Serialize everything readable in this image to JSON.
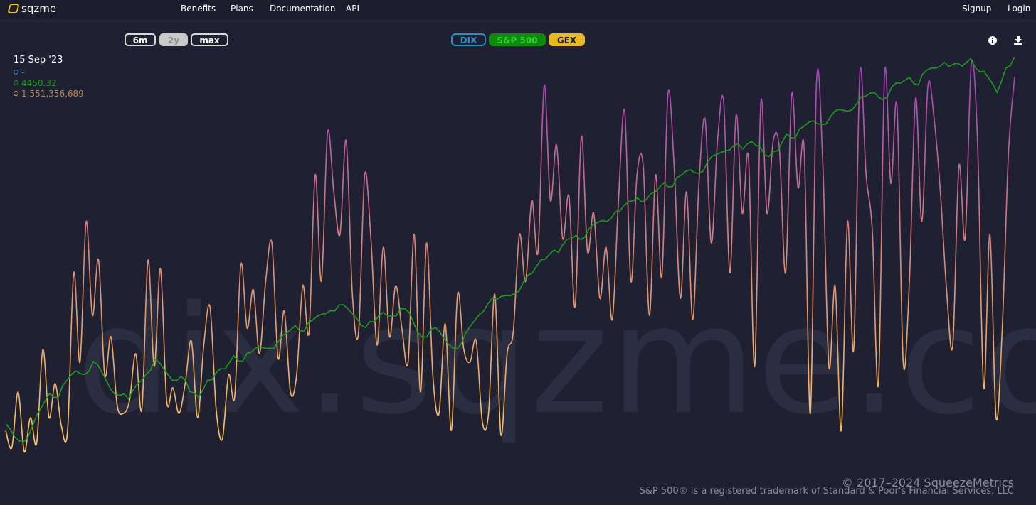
{
  "nav": {
    "brand": "sqzme",
    "links": [
      "Benefits",
      "Plans",
      "Documentation",
      "API"
    ],
    "signup": "Signup",
    "login": "Login"
  },
  "range_buttons": [
    {
      "label": "6m",
      "active": false
    },
    {
      "label": "2y",
      "active": true
    },
    {
      "label": "max",
      "active": false
    }
  ],
  "series_buttons": [
    {
      "label": "DIX",
      "color": "#2b8fbd",
      "active": false
    },
    {
      "label": "S&P 500",
      "color": "#0e8a0e",
      "active": true
    },
    {
      "label": "GEX",
      "color": "#e8b820",
      "active": true
    }
  ],
  "legend": {
    "date": "15 Sep '23",
    "dix_value": "-",
    "sp500_value": "4450.32",
    "gex_value": "1,551,356,689",
    "dix_color": "#2b8fbd",
    "sp500_color": "#1f9a1f",
    "gex_color": "#d0a040"
  },
  "watermark": "dix.sqzme.co",
  "footer": {
    "copyright": "© 2017–2024 SqueezeMetrics",
    "trademark": "S&P 500® is a registered trademark of Standard & Poor's Financial Services, LLC"
  },
  "icons": {
    "info": "info-icon",
    "download": "download-icon"
  },
  "chart_data": {
    "type": "line",
    "series": [
      {
        "name": "S&P 500",
        "color": "#1f9a1f",
        "values": [
          3720,
          3650,
          3620,
          3700,
          3800,
          3880,
          3860,
          3950,
          4000,
          3980,
          4050,
          3990,
          3900,
          3870,
          3850,
          3930,
          3980,
          4060,
          4010,
          3950,
          3970,
          3890,
          3860,
          3950,
          3990,
          4010,
          4080,
          4050,
          4100,
          4130,
          4120,
          4150,
          4200,
          4240,
          4210,
          4270,
          4300,
          4320,
          4350,
          4330,
          4280,
          4230,
          4260,
          4310,
          4290,
          4330,
          4310,
          4200,
          4180,
          4230,
          4170,
          4120,
          4150,
          4240,
          4300,
          4360,
          4380,
          4400,
          4410,
          4470,
          4520,
          4590,
          4620,
          4630,
          4700,
          4720,
          4710,
          4780,
          4800,
          4810,
          4850,
          4900,
          4920,
          4910,
          4950,
          5000,
          4980,
          5040,
          5070,
          5050,
          5110,
          5150,
          5170,
          5200,
          5180,
          5220,
          5190,
          5140,
          5170,
          5260,
          5240,
          5300,
          5330,
          5310,
          5350,
          5390,
          5380,
          5420,
          5460,
          5480,
          5440,
          5510,
          5530,
          5560,
          5520,
          5600,
          5610,
          5640,
          5630,
          5620,
          5660,
          5590,
          5560,
          5480,
          5610,
          5670
        ]
      },
      {
        "name": "GEX",
        "color": "#e8b040",
        "values": [
          0.9,
          0.5,
          1.8,
          0.4,
          1.2,
          0.6,
          2.8,
          1.2,
          2.0,
          1.0,
          0.9,
          4.6,
          2.5,
          5.8,
          3.6,
          4.9,
          2.2,
          3.1,
          1.5,
          1.3,
          1.6,
          2.7,
          1.4,
          4.9,
          2.4,
          4.7,
          1.6,
          1.9,
          1.3,
          2.0,
          3.0,
          1.2,
          2.9,
          3.8,
          1.4,
          0.7,
          2.2,
          1.7,
          4.8,
          3.3,
          4.2,
          2.7,
          4.4,
          5.3,
          2.6,
          3.7,
          1.8,
          2.2,
          4.3,
          3.2,
          6.9,
          4.4,
          7.9,
          6.5,
          5.5,
          7.7,
          4.1,
          3.2,
          6.9,
          5.4,
          2.9,
          5.2,
          3.1,
          4.3,
          3.3,
          2.5,
          5.5,
          1.8,
          5.3,
          2.2,
          1.3,
          3.4,
          0.9,
          4.1,
          2.8,
          2.5,
          3.0,
          1.1,
          1.3,
          4.1,
          0.8,
          2.7,
          3.2,
          5.5,
          4.4,
          6.3,
          5.1,
          9.0,
          6.3,
          7.6,
          5.4,
          6.4,
          3.8,
          7.8,
          5.1,
          6.0,
          4.0,
          5.2,
          3.5,
          6.3,
          8.4,
          4.4,
          6.9,
          7.1,
          3.6,
          6.9,
          4.5,
          8.8,
          7.1,
          4.0,
          6.5,
          3.5,
          6.7,
          8.2,
          5.3,
          7.7,
          8.6,
          4.6,
          8.3,
          6.0,
          7.3,
          2.4,
          8.6,
          6.0,
          7.7,
          7.5,
          4.6,
          8.8,
          6.6,
          7.5,
          1.3,
          9.1,
          7.2,
          2.4,
          4.3,
          0.9,
          5.8,
          2.8,
          9.3,
          6.9,
          5.6,
          2.0,
          9.3,
          6.7,
          8.5,
          2.5,
          4.4,
          8.7,
          5.8,
          9.0,
          8.2,
          6.5,
          4.2,
          2.9,
          7.1,
          5.4,
          9.5,
          7.7,
          1.9,
          5.5,
          1.2,
          3.3,
          7.4,
          9.2
        ]
      }
    ],
    "xlabel": "",
    "ylabel": ""
  }
}
